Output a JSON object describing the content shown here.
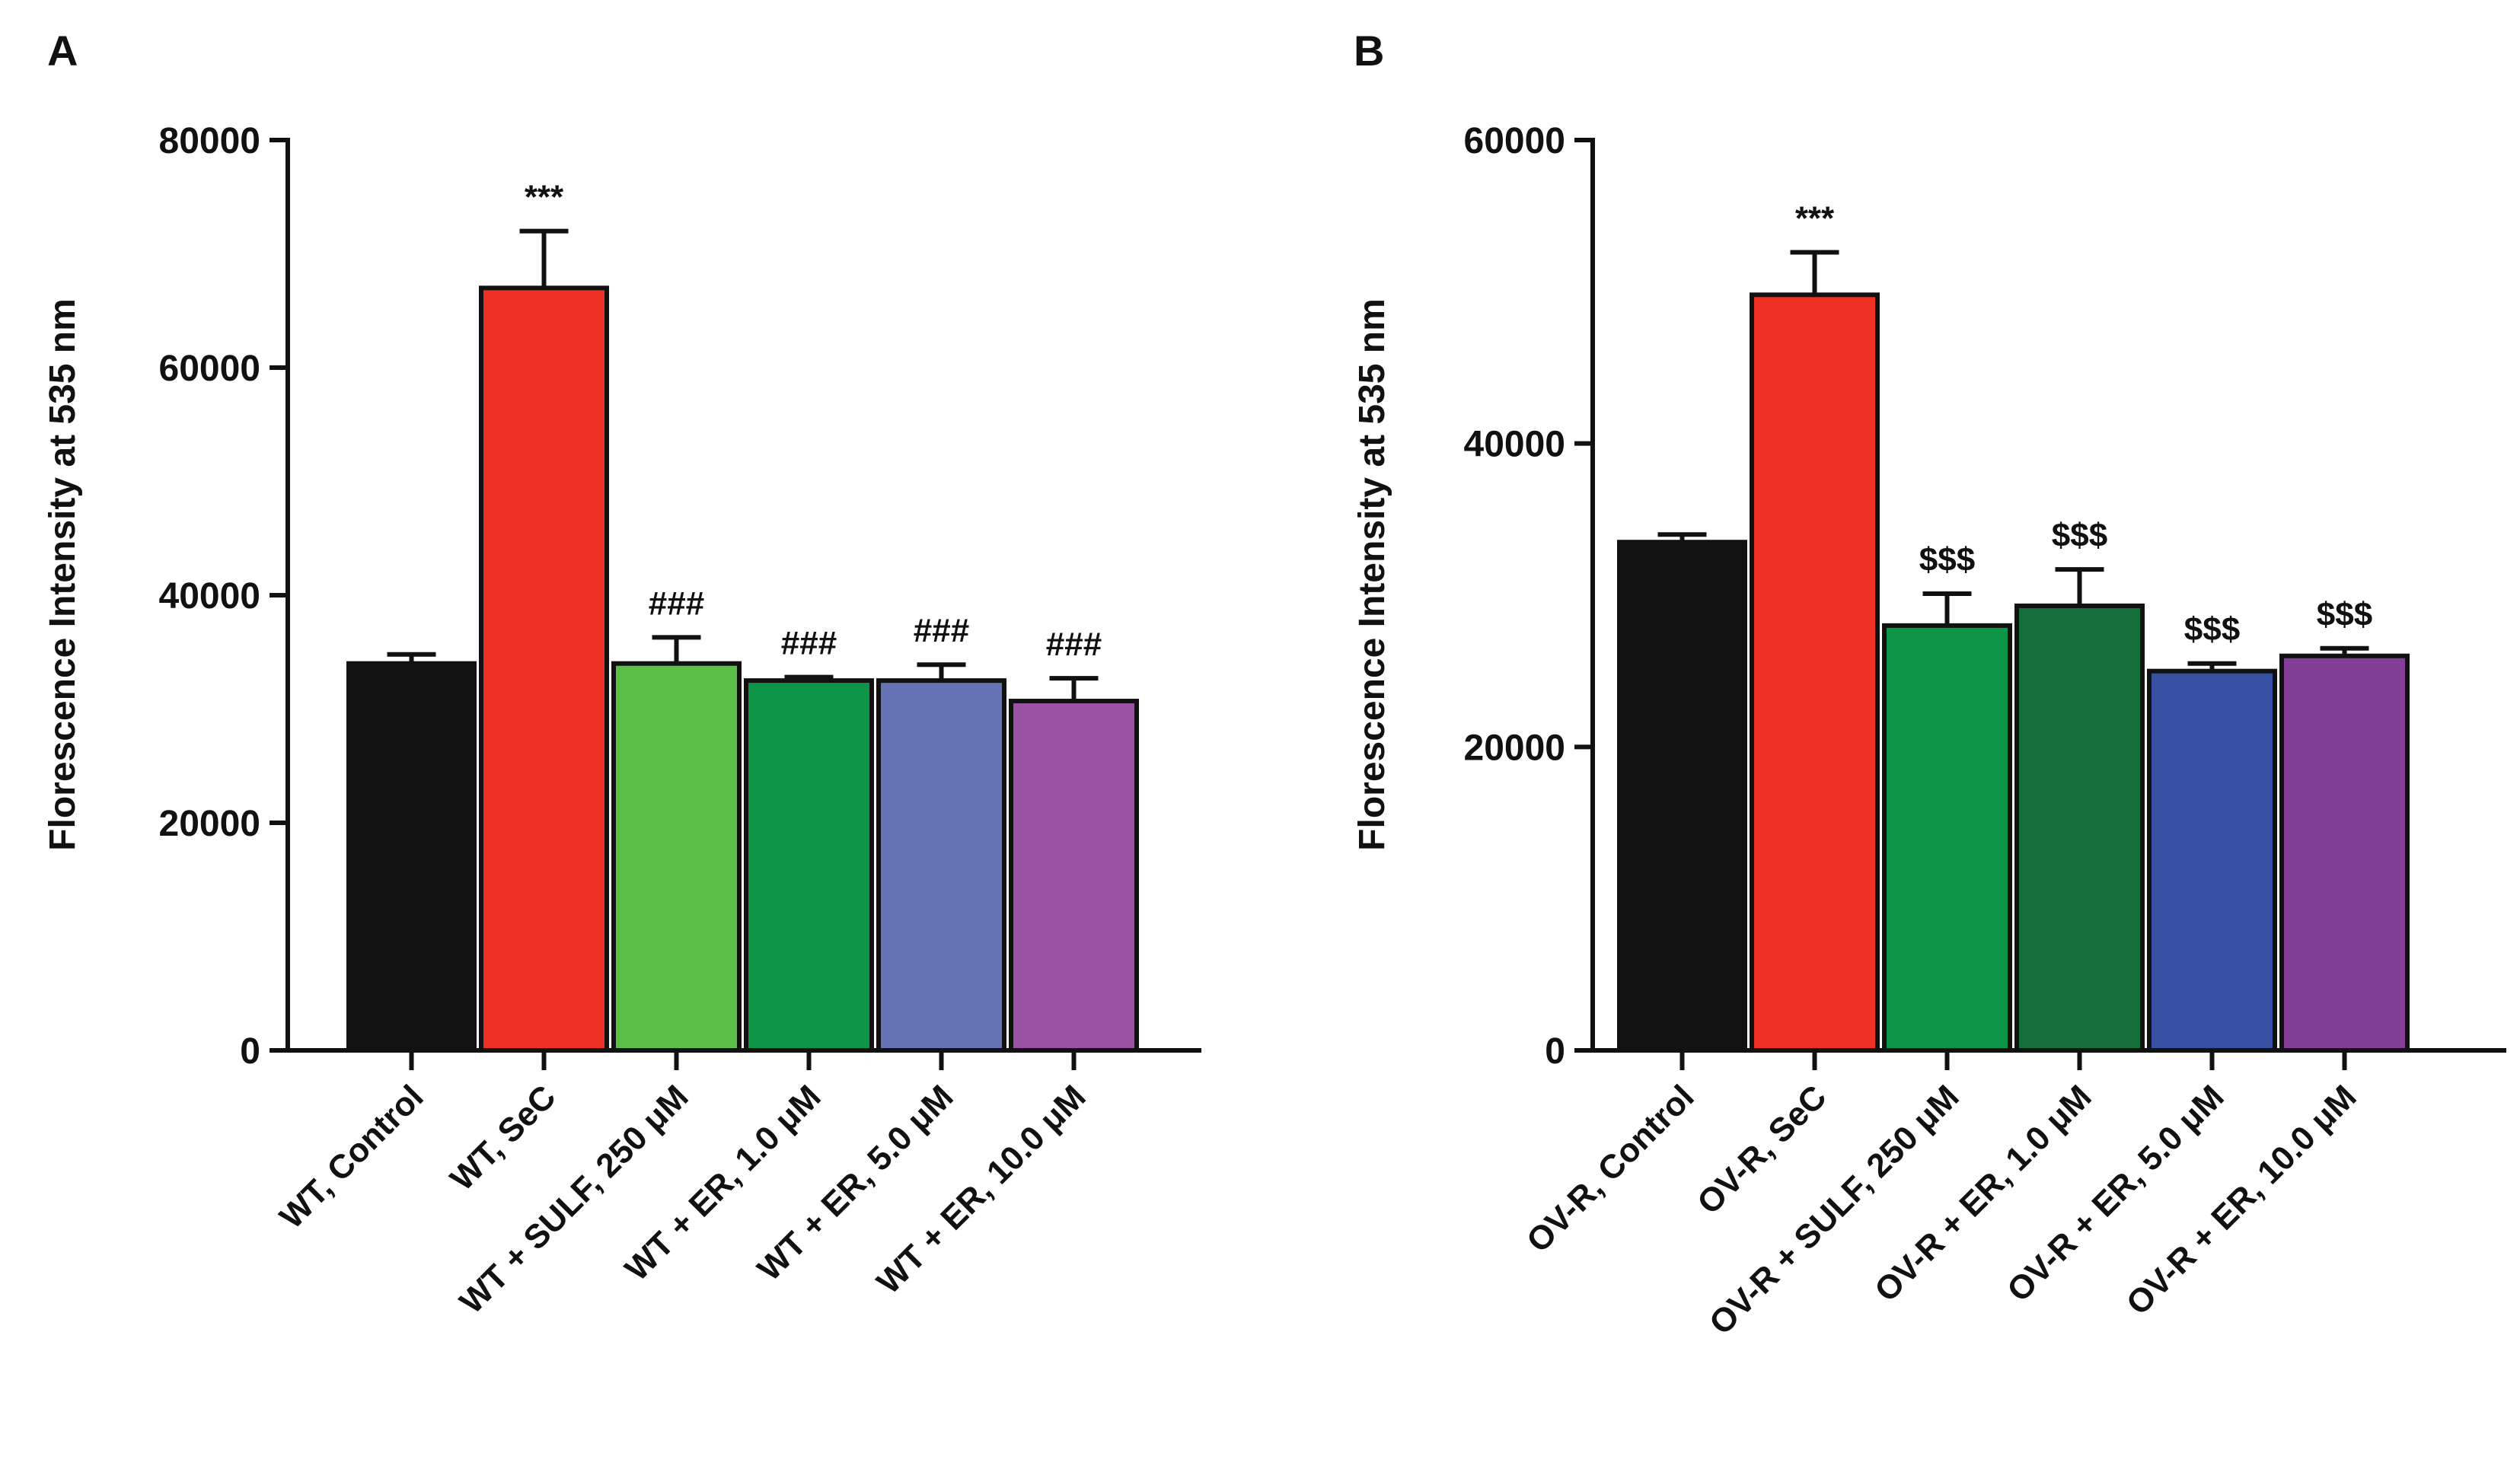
{
  "chart_data": [
    {
      "type": "bar",
      "panel": "A",
      "title": "",
      "xlabel": "",
      "ylabel": "Florescence Intensity at 535 nm",
      "ylim": [
        0,
        80000
      ],
      "yticks": [
        0,
        20000,
        40000,
        60000,
        80000
      ],
      "categories": [
        "WT, Control",
        "WT, SeC",
        "WT + SULF, 250 μM",
        "WT + ER, 1.0 μM",
        "WT + ER, 5.0 μM",
        "WT + ER, 10.0 μM"
      ],
      "values": [
        34000,
        67000,
        34000,
        32500,
        32500,
        30700
      ],
      "errors": [
        800,
        5000,
        2300,
        300,
        1400,
        2000
      ],
      "colors": [
        "#111111",
        "#ee3124",
        "#5cbf47",
        "#0e9447",
        "#6572b3",
        "#9a52a2"
      ],
      "annotations": [
        "",
        "***",
        "###",
        "###",
        "###",
        "###"
      ]
    },
    {
      "type": "bar",
      "panel": "B",
      "title": "",
      "xlabel": "",
      "ylabel": "Florescence Intensity at 535 nm",
      "ylim": [
        0,
        60000
      ],
      "yticks": [
        0,
        20000,
        40000,
        60000
      ],
      "categories": [
        "OV-R, Control",
        "OV-R, SeC",
        "OV-R + SULF, 250 μM",
        "OV-R + ER, 1.0 μM",
        "OV-R + ER, 5.0 μM",
        "OV-R + ER, 10.0 μM"
      ],
      "values": [
        33500,
        49800,
        28000,
        29300,
        25000,
        26000
      ],
      "errors": [
        500,
        2800,
        2100,
        2400,
        500,
        500
      ],
      "colors": [
        "#111111",
        "#ee3124",
        "#0e9447",
        "#146e39",
        "#3650a2",
        "#833f97"
      ],
      "annotations": [
        "",
        "***",
        "$$$",
        "$$$",
        "$$$",
        "$$$"
      ]
    }
  ]
}
